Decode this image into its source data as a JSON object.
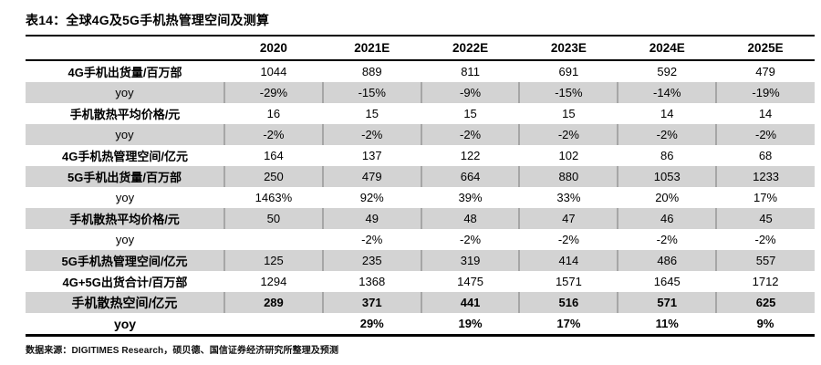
{
  "title": "表14：全球4G及5G手机热管理空间及测算",
  "columns": [
    "",
    "2020",
    "2021E",
    "2022E",
    "2023E",
    "2024E",
    "2025E"
  ],
  "rows": [
    {
      "label": "4G手机出货量/百万部",
      "values": [
        "1044",
        "889",
        "811",
        "691",
        "592",
        "479"
      ]
    },
    {
      "label": "yoy",
      "values": [
        "-29%",
        "-15%",
        "-9%",
        "-15%",
        "-14%",
        "-19%"
      ]
    },
    {
      "label": "手机散热平均价格/元",
      "values": [
        "16",
        "15",
        "15",
        "15",
        "14",
        "14"
      ]
    },
    {
      "label": "yoy",
      "values": [
        "-2%",
        "-2%",
        "-2%",
        "-2%",
        "-2%",
        "-2%"
      ]
    },
    {
      "label": "4G手机热管理空间/亿元",
      "values": [
        "164",
        "137",
        "122",
        "102",
        "86",
        "68"
      ]
    },
    {
      "label": "5G手机出货量/百万部",
      "values": [
        "250",
        "479",
        "664",
        "880",
        "1053",
        "1233"
      ]
    },
    {
      "label": "yoy",
      "values": [
        "1463%",
        "92%",
        "39%",
        "33%",
        "20%",
        "17%"
      ]
    },
    {
      "label": "手机散热平均价格/元",
      "values": [
        "50",
        "49",
        "48",
        "47",
        "46",
        "45"
      ]
    },
    {
      "label": "yoy",
      "values": [
        "",
        "-2%",
        "-2%",
        "-2%",
        "-2%",
        "-2%"
      ]
    },
    {
      "label": "5G手机热管理空间/亿元",
      "values": [
        "125",
        "235",
        "319",
        "414",
        "486",
        "557"
      ]
    },
    {
      "label": "4G+5G出货合计/百万部",
      "values": [
        "1294",
        "1368",
        "1475",
        "1571",
        "1645",
        "1712"
      ]
    },
    {
      "label": "手机散热空间/亿元",
      "values": [
        "289",
        "371",
        "441",
        "516",
        "571",
        "625"
      ],
      "emphasis": true
    },
    {
      "label": "yoy",
      "values": [
        "",
        "29%",
        "19%",
        "17%",
        "11%",
        "9%"
      ],
      "emphasis": true
    }
  ],
  "source": "数据来源：DIGITIMES Research，硕贝德、国信证券经济研究所整理及预测",
  "colors": {
    "shaded_row": "#d3d3d3",
    "column_divider": "#a6a6a6",
    "rule": "#000000"
  }
}
